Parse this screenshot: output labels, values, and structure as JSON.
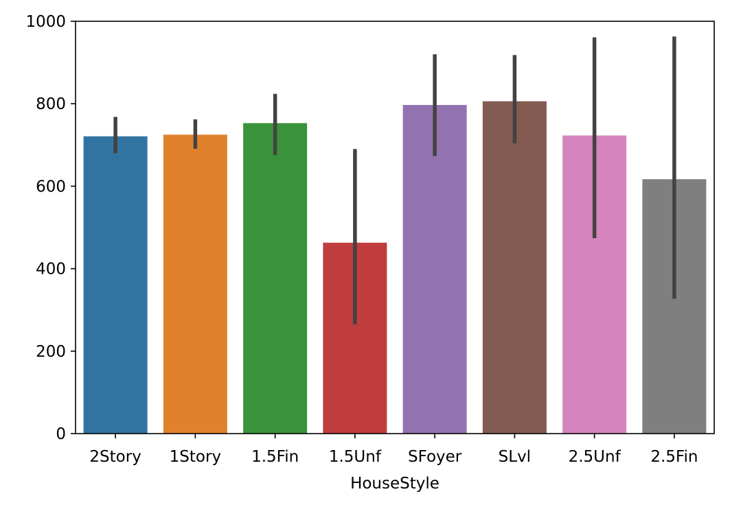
{
  "chart_data": {
    "type": "bar",
    "title": "",
    "xlabel": "HouseStyle",
    "ylabel": "",
    "ylim": [
      0,
      1000
    ],
    "yticks": [
      0,
      200,
      400,
      600,
      800,
      1000
    ],
    "grid": false,
    "categories": [
      "2Story",
      "1Story",
      "1.5Fin",
      "1.5Unf",
      "SFoyer",
      "SLvl",
      "2.5Unf",
      "2.5Fin"
    ],
    "values": [
      721,
      725,
      753,
      463,
      797,
      806,
      723,
      617
    ],
    "error_low": [
      680,
      691,
      676,
      265,
      673,
      704,
      474,
      327
    ],
    "error_high": [
      768,
      762,
      824,
      690,
      920,
      918,
      961,
      963
    ],
    "colors": [
      "#3274a1",
      "#e1812c",
      "#3a923a",
      "#c03d3e",
      "#9372b2",
      "#845b53",
      "#d684bd",
      "#7f7f7f"
    ],
    "error_color": "#424242"
  }
}
